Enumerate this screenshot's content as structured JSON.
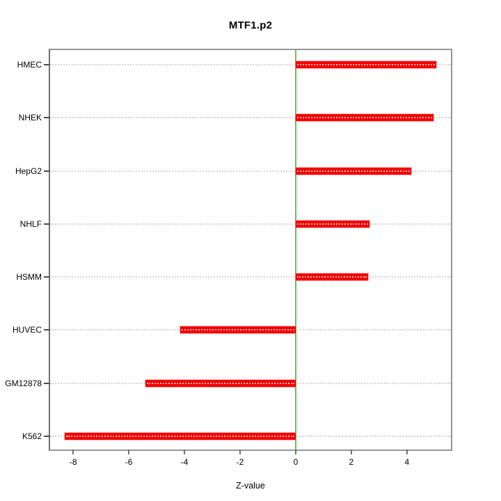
{
  "chart_data": {
    "type": "bar",
    "orientation": "horizontal",
    "title": "MTF1.p2",
    "xlabel": "Z-value",
    "categories": [
      "HMEC",
      "NHEK",
      "HepG2",
      "NHLF",
      "HSMM",
      "HUVEC",
      "GM12878",
      "K562"
    ],
    "values": [
      5.05,
      4.95,
      4.15,
      2.65,
      2.6,
      -4.15,
      -5.4,
      -8.3
    ],
    "xlim": [
      -8.83,
      5.58
    ],
    "xticks": [
      -8,
      -6,
      -4,
      -2,
      0,
      2,
      4
    ],
    "grid": "dotted-horizontal",
    "legend": "none",
    "bar_color": "#f40000",
    "zero_line_color": "#44d544",
    "frame_color": "#969696",
    "gridline_color": "#d4d4d4",
    "background_color": "#ffffff"
  }
}
